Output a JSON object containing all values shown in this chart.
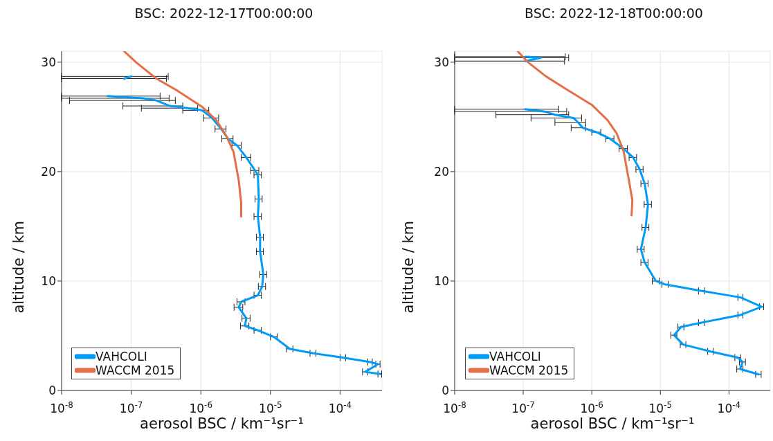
{
  "chart_data": [
    {
      "type": "line",
      "title": "BSC: 2022-12-17T00:00:00",
      "xlabel": "aerosol BSC / km⁻¹sr⁻¹",
      "ylabel": "altitude / km",
      "log": "x",
      "xlim": [
        1e-08,
        0.0004
      ],
      "xticks": [
        {
          "value": 1e-08,
          "label": "10$^{-8}$"
        },
        {
          "value": 1e-07,
          "label": "10$^{-7}$"
        },
        {
          "value": 1e-06,
          "label": "10$^{-6}$"
        },
        {
          "value": 1e-05,
          "label": "10$^{-5}$"
        },
        {
          "value": 0.0001,
          "label": "10$^{-4}$"
        }
      ],
      "ylim": [
        0,
        31
      ],
      "yticks": [
        0,
        10,
        20,
        30
      ],
      "grid": true,
      "legend": "bottom left",
      "marker": "none",
      "line_style": "solid",
      "series": [
        {
          "name": "VAHCOLI",
          "color": "#009af9",
          "x": [
            7.9e-08,
            1e-07,
            null,
            4.6e-08,
            1.5e-07,
            2.3e-07,
            3.6e-07,
            6.5e-07,
            1.04e-06,
            1.45e-06,
            1.96e-06,
            2.46e-06,
            3.3e-06,
            4.5e-06,
            6e-06,
            6.6e-06,
            6.8e-06,
            6.6e-06,
            7.1e-06,
            7.1e-06,
            7.9e-06,
            7.6e-06,
            6.6e-06,
            3.8e-06,
            3.5e-06,
            4.5e-06,
            4.3e-06,
            6.6e-06,
            1.12e-05,
            1.9e-05,
            4.1e-05,
            0.00011,
            0.00027,
            0.00035,
            0.00023,
            0.00038
          ],
          "values": [
            28.5,
            28.7,
            null,
            26.9,
            26.7,
            26.5,
            26.0,
            25.8,
            25.6,
            24.9,
            23.9,
            23.0,
            22.4,
            21.3,
            20.1,
            19.7,
            17.5,
            15.9,
            14.0,
            12.7,
            10.6,
            9.5,
            8.7,
            8.1,
            7.6,
            6.6,
            5.9,
            5.5,
            4.9,
            3.8,
            3.4,
            3.0,
            2.6,
            2.4,
            1.7,
            1.5
          ],
          "xerrors": [
            [
              1e-08,
              3.2e-07
            ],
            [
              1e-08,
              3.4e-07
            ],
            null,
            [
              1e-08,
              2.6e-07
            ],
            [
              1e-08,
              3.5e-07
            ],
            [
              1.3e-08,
              4.3e-07
            ],
            [
              7.6e-08,
              5.5e-07
            ],
            [
              1.4e-07,
              9e-07
            ],
            [
              5.5e-07,
              1.3e-06
            ],
            [
              1.1e-06,
              1.8e-06
            ],
            [
              1.6e-06,
              2.3e-06
            ],
            [
              2e-06,
              2.9e-06
            ],
            [
              2.8e-06,
              3.8e-06
            ],
            [
              3.8e-06,
              5.2e-06
            ],
            [
              5.2e-06,
              6.8e-06
            ],
            [
              5.8e-06,
              7.4e-06
            ],
            [
              6e-06,
              7.6e-06
            ],
            [
              5.8e-06,
              7.4e-06
            ],
            [
              6.3e-06,
              7.9e-06
            ],
            [
              6.3e-06,
              7.9e-06
            ],
            [
              7e-06,
              8.8e-06
            ],
            [
              6.7e-06,
              8.5e-06
            ],
            [
              5.8e-06,
              7.4e-06
            ],
            [
              3.3e-06,
              4.3e-06
            ],
            [
              3e-06,
              4e-06
            ],
            [
              3.9e-06,
              5.1e-06
            ],
            [
              3.7e-06,
              4.9e-06
            ],
            [
              5.8e-06,
              7.4e-06
            ],
            [
              1e-05,
              1.25e-05
            ],
            [
              1.7e-05,
              2.1e-05
            ],
            [
              3.7e-05,
              4.5e-05
            ],
            [
              0.0001,
              0.00012
            ],
            [
              0.00025,
              0.00029
            ],
            [
              0.000325,
              0.000375
            ],
            [
              0.00021,
              0.00025
            ],
            [
              0.00035,
              0.000395
            ]
          ]
        },
        {
          "name": "WACCM 2015",
          "color": "#e26f46",
          "x": [
            7.9e-08,
            1.17e-07,
            2.3e-07,
            4.6e-07,
            1.05e-06,
            1.67e-06,
            2.35e-06,
            2.95e-06,
            3.5e-06,
            3.8e-06,
            3.8e-06
          ],
          "values": [
            31.0,
            30.0,
            28.5,
            27.4,
            25.9,
            24.7,
            23.2,
            21.8,
            19.2,
            17.1,
            15.9
          ]
        }
      ]
    },
    {
      "type": "line",
      "title": "BSC: 2022-12-18T00:00:00",
      "xlabel": "aerosol BSC / km⁻¹sr⁻¹",
      "ylabel": "altitude / km",
      "log": "x",
      "xlim": [
        1e-08,
        0.0004
      ],
      "xticks": [
        {
          "value": 1e-08,
          "label": "10$^{-8}$"
        },
        {
          "value": 1e-07,
          "label": "10$^{-7}$"
        },
        {
          "value": 1e-06,
          "label": "10$^{-6}$"
        },
        {
          "value": 1e-05,
          "label": "10$^{-5}$"
        },
        {
          "value": 0.0001,
          "label": "10$^{-4}$"
        }
      ],
      "ylim": [
        0,
        31
      ],
      "yticks": [
        0,
        10,
        20,
        30
      ],
      "grid": true,
      "legend": "bottom left",
      "marker": "none",
      "line_style": "solid",
      "series": [
        {
          "name": "VAHCOLI",
          "color": "#009af9",
          "x": [
            1.08e-07,
            1.78e-07,
            1.08e-07,
            null,
            1.07e-07,
            2e-07,
            2.9e-07,
            5.4e-07,
            6.3e-07,
            7.4e-07,
            1.17e-06,
            1.85e-06,
            2.9e-06,
            4e-06,
            5e-06,
            5.9e-06,
            6.6e-06,
            6.1e-06,
            5.2e-06,
            5.9e-06,
            8.6e-06,
            1.17e-05,
            4e-05,
            0.000148,
            0.0003,
            0.000148,
            4e-05,
            2e-05,
            1.58e-05,
            2.15e-05,
            5.4e-05,
            0.000135,
            0.000158,
            0.000145,
            0.00027
          ],
          "values": [
            30.5,
            30.4,
            30.1,
            null,
            25.7,
            25.5,
            25.2,
            24.9,
            24.5,
            24.0,
            23.6,
            23.0,
            22.1,
            21.3,
            20.2,
            18.9,
            17.0,
            14.9,
            12.9,
            11.7,
            10.0,
            9.7,
            9.1,
            8.5,
            7.65,
            6.9,
            6.2,
            5.8,
            5.05,
            4.2,
            3.56,
            3.0,
            2.6,
            1.96,
            1.47
          ],
          "xerrors": [
            [
              1e-08,
              4.1e-07
            ],
            [
              1e-08,
              4.6e-07
            ],
            [
              1e-08,
              4e-07
            ],
            null,
            [
              1e-08,
              3.3e-07
            ],
            [
              1e-08,
              4.3e-07
            ],
            [
              4e-08,
              4.6e-07
            ],
            [
              1.3e-07,
              7.1e-07
            ],
            [
              2.9e-07,
              8.1e-07
            ],
            [
              5e-07,
              8.1e-07
            ],
            [
              1e-06,
              1.35e-06
            ],
            [
              1.6e-06,
              2.1e-06
            ],
            [
              2.5e-06,
              3.3e-06
            ],
            [
              3.5e-06,
              4.5e-06
            ],
            [
              4.4e-06,
              5.6e-06
            ],
            [
              5.2e-06,
              6.6e-06
            ],
            [
              5.8e-06,
              7.4e-06
            ],
            [
              5.4e-06,
              6.8e-06
            ],
            [
              4.6e-06,
              5.8e-06
            ],
            [
              5.2e-06,
              6.6e-06
            ],
            [
              7.6e-06,
              9.7e-06
            ],
            [
              1.05e-05,
              1.3e-05
            ],
            [
              3.6e-05,
              4.4e-05
            ],
            [
              0.000135,
              0.00016
            ],
            [
              0.00028,
              0.00032
            ],
            [
              0.000135,
              0.00016
            ],
            [
              3.6e-05,
              4.4e-05
            ],
            [
              1.8e-05,
              2.2e-05
            ],
            [
              1.42e-05,
              1.74e-05
            ],
            [
              1.95e-05,
              2.35e-05
            ],
            [
              4.9e-05,
              5.9e-05
            ],
            [
              0.000122,
              0.000148
            ],
            [
              0.000142,
              0.000174
            ],
            [
              0.00013,
              0.00016
            ],
            [
              0.000245,
              0.000295
            ]
          ]
        },
        {
          "name": "WACCM 2015",
          "color": "#e26f46",
          "x": [
            8.3e-08,
            1.17e-07,
            2.15e-07,
            4.6e-07,
            1e-06,
            1.7e-06,
            2.3e-06,
            2.9e-06,
            3.5e-06,
            3.9e-06,
            3.8e-06
          ],
          "values": [
            31.0,
            30.0,
            28.7,
            27.4,
            26.1,
            24.7,
            23.5,
            21.9,
            19.1,
            17.4,
            16.0
          ]
        }
      ]
    }
  ]
}
